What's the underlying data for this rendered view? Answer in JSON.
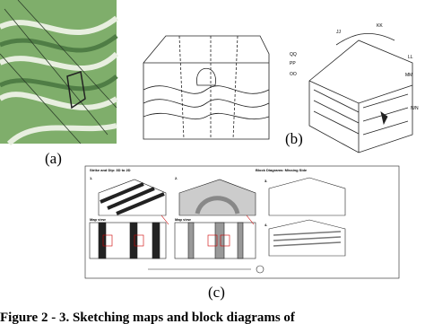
{
  "panels": [
    {
      "label": "(a)"
    },
    {
      "label": "(b)",
      "annotations": [
        "JJ",
        "KK",
        "LL",
        "MM",
        "QQ",
        "PP",
        "OO",
        "N/N"
      ]
    },
    {
      "label": "(c)",
      "sections": [
        "Strike and Dip: 3D to 2D",
        "Block Diagrams: Missing Side"
      ],
      "numbers": [
        "1.",
        "2.",
        "3.",
        "4."
      ],
      "map_labels": [
        "Map view",
        "Map view"
      ]
    }
  ],
  "caption": "Figure 2 - 3. Sketching maps and block diagrams of"
}
